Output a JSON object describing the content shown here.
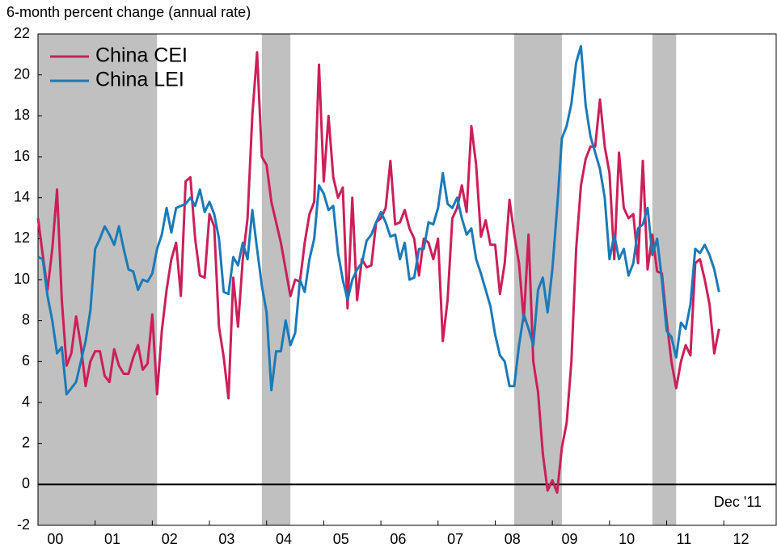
{
  "chart_data": {
    "type": "line",
    "title": "6-month percent change (annual rate)",
    "annotation": "Dec '11",
    "categories": [
      "00",
      null,
      null,
      null,
      null,
      null,
      null,
      null,
      null,
      null,
      null,
      null,
      "01",
      null,
      null,
      null,
      null,
      null,
      null,
      null,
      null,
      null,
      null,
      null,
      "02",
      null,
      null,
      null,
      null,
      null,
      null,
      null,
      null,
      null,
      null,
      null,
      "03",
      null,
      null,
      null,
      null,
      null,
      null,
      null,
      null,
      null,
      null,
      null,
      "04",
      null,
      null,
      null,
      null,
      null,
      null,
      null,
      null,
      null,
      null,
      null,
      "05",
      null,
      null,
      null,
      null,
      null,
      null,
      null,
      null,
      null,
      null,
      null,
      "06",
      null,
      null,
      null,
      null,
      null,
      null,
      null,
      null,
      null,
      null,
      null,
      "07",
      null,
      null,
      null,
      null,
      null,
      null,
      null,
      null,
      null,
      null,
      null,
      "08",
      null,
      null,
      null,
      null,
      null,
      null,
      null,
      null,
      null,
      null,
      null,
      "09",
      null,
      null,
      null,
      null,
      null,
      null,
      null,
      null,
      null,
      null,
      null,
      "10",
      null,
      null,
      null,
      null,
      null,
      null,
      null,
      null,
      null,
      null,
      null,
      "11",
      null,
      null,
      null,
      null,
      null,
      null,
      null,
      null,
      null,
      null,
      null,
      "12",
      null,
      null,
      null,
      null,
      null,
      null,
      null,
      null,
      null,
      null,
      null
    ],
    "series": [
      {
        "name": "China CEI",
        "color": "#cc1f5a",
        "values": [
          13.0,
          11.2,
          9.5,
          11.5,
          14.4,
          9.0,
          5.8,
          6.4,
          8.2,
          6.8,
          4.8,
          6.0,
          6.5,
          6.5,
          5.3,
          5.0,
          6.6,
          5.8,
          5.4,
          5.4,
          6.2,
          6.8,
          5.6,
          5.9,
          8.3,
          4.4,
          7.5,
          9.5,
          11.0,
          11.8,
          9.2,
          14.8,
          15.0,
          12.0,
          10.2,
          10.1,
          13.2,
          12.6,
          7.7,
          6.2,
          4.2,
          10.1,
          7.7,
          11.0,
          13.0,
          18.0,
          21.1,
          16.0,
          15.6,
          13.8,
          12.8,
          11.8,
          10.5,
          9.2,
          10.0,
          9.9,
          11.8,
          13.2,
          13.8,
          20.5,
          14.8,
          18.0,
          15.0,
          14.0,
          14.5,
          8.6,
          14.0,
          9.0,
          11.0,
          10.6,
          10.7,
          12.8,
          13.0,
          13.5,
          15.8,
          12.7,
          12.8,
          13.4,
          12.5,
          12.0,
          10.2,
          12.0,
          11.8,
          11.0,
          12.0,
          7.0,
          9.0,
          13.0,
          13.5,
          14.6,
          13.3,
          17.5,
          15.6,
          12.1,
          12.9,
          11.7,
          11.7,
          9.3,
          10.8,
          13.9,
          12.2,
          10.8,
          8.0,
          12.2,
          6.0,
          4.5,
          1.5,
          -0.3,
          0.2,
          -0.4,
          1.8,
          3.0,
          6.0,
          11.5,
          14.6,
          15.9,
          16.5,
          16.5,
          18.8,
          16.5,
          15.2,
          11.0,
          16.2,
          13.5,
          13.0,
          13.2,
          10.8,
          15.8,
          10.5,
          12.2,
          10.4,
          10.3,
          8.0,
          6.0,
          4.7,
          6.0,
          6.8,
          6.3,
          10.8,
          11.0,
          10.0,
          8.8,
          6.4,
          7.6,
          null,
          null,
          null,
          null,
          null,
          null,
          null,
          null,
          null,
          null,
          null,
          null
        ]
      },
      {
        "name": "China LEI",
        "color": "#1a7ab8",
        "values": [
          11.1,
          11.0,
          9.2,
          8.0,
          6.4,
          6.7,
          4.4,
          4.7,
          5.0,
          6.0,
          7.0,
          8.5,
          11.5,
          12.0,
          12.6,
          12.2,
          11.7,
          12.6,
          11.5,
          10.5,
          10.4,
          9.5,
          10.0,
          9.9,
          10.3,
          11.5,
          12.2,
          13.5,
          12.3,
          13.5,
          13.6,
          13.7,
          14.0,
          13.6,
          14.4,
          13.3,
          13.8,
          13.2,
          12.0,
          9.4,
          9.3,
          11.1,
          10.7,
          11.8,
          11.0,
          13.4,
          11.5,
          9.7,
          8.4,
          4.6,
          6.5,
          6.5,
          8.0,
          6.8,
          7.4,
          10.0,
          9.4,
          11.0,
          12.0,
          14.6,
          14.2,
          13.4,
          13.6,
          11.3,
          10.0,
          9.0,
          10.0,
          10.5,
          10.8,
          11.9,
          12.2,
          12.8,
          13.3,
          12.8,
          12.1,
          12.2,
          11.0,
          11.8,
          10.0,
          10.1,
          11.5,
          11.5,
          12.8,
          12.7,
          13.5,
          15.2,
          13.7,
          13.5,
          14.0,
          13.0,
          12.2,
          12.5,
          11.0,
          10.3,
          9.5,
          8.7,
          7.3,
          6.3,
          6.0,
          4.8,
          4.8,
          6.8,
          8.3,
          7.6,
          6.8,
          9.5,
          10.1,
          8.4,
          10.5,
          13.5,
          16.9,
          17.5,
          18.6,
          20.6,
          21.4,
          18.5,
          17.0,
          16.2,
          15.4,
          14.0,
          11.0,
          12.2,
          11.0,
          11.5,
          10.2,
          10.8,
          12.5,
          12.7,
          13.5,
          11.2,
          12.0,
          10.0,
          7.5,
          7.2,
          6.2,
          7.9,
          7.6,
          8.8,
          11.5,
          11.3,
          11.7,
          11.2,
          10.5,
          9.4,
          null,
          null,
          null,
          null,
          null,
          null,
          null,
          null,
          null,
          null,
          null,
          null
        ]
      }
    ],
    "shaded": [
      [
        0,
        25
      ],
      [
        47,
        53
      ],
      [
        100,
        110
      ],
      [
        129,
        134
      ]
    ],
    "shade_color": "#c0c0c0",
    "ylim": [
      -2,
      22
    ],
    "yticks": [
      -2,
      0,
      2,
      4,
      6,
      8,
      10,
      12,
      14,
      16,
      18,
      20,
      22
    ],
    "legend": "upper left"
  }
}
